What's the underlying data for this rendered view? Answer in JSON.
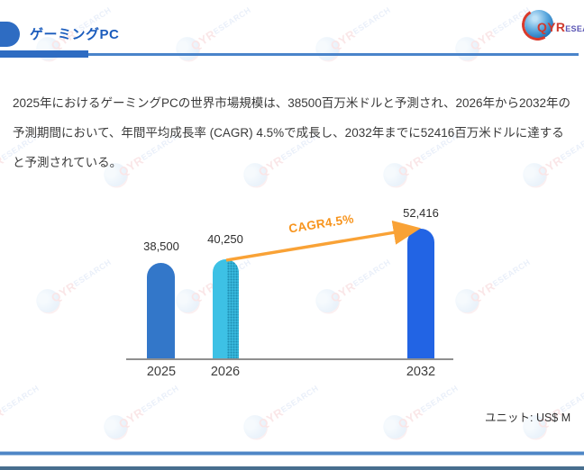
{
  "slide": {
    "title": "ゲーミングPC",
    "logo": {
      "qyr": "QYR",
      "rest": "ESEARCH"
    },
    "watermark": {
      "qyr": "QYR",
      "rest": "ESEARCH"
    },
    "body_text": "2025年におけるゲーミングPCの世界市場規模は、38500百万米ドルと予測され、2026年から2032年の予測期間において、年間平均成長率 (CAGR) 4.5%で成長し、2032年までに52416百万米ドルに達すると予測されている。",
    "unit_label": "ユニット: US$ M"
  },
  "chart_data": {
    "type": "bar",
    "categories": [
      "2025",
      "2026",
      "2032"
    ],
    "values": [
      38500,
      40250,
      52416
    ],
    "value_labels": [
      "38,500",
      "40,250",
      "52,416"
    ],
    "unit": "US$ M",
    "ylim": [
      0,
      52416
    ],
    "cagr_label": "CAGR4.5%",
    "bar_colors": [
      "#3377c9",
      "#3dc1e5",
      "#2264e4"
    ],
    "arrow_color": "#f9a236",
    "grid": false,
    "legend": "none"
  }
}
